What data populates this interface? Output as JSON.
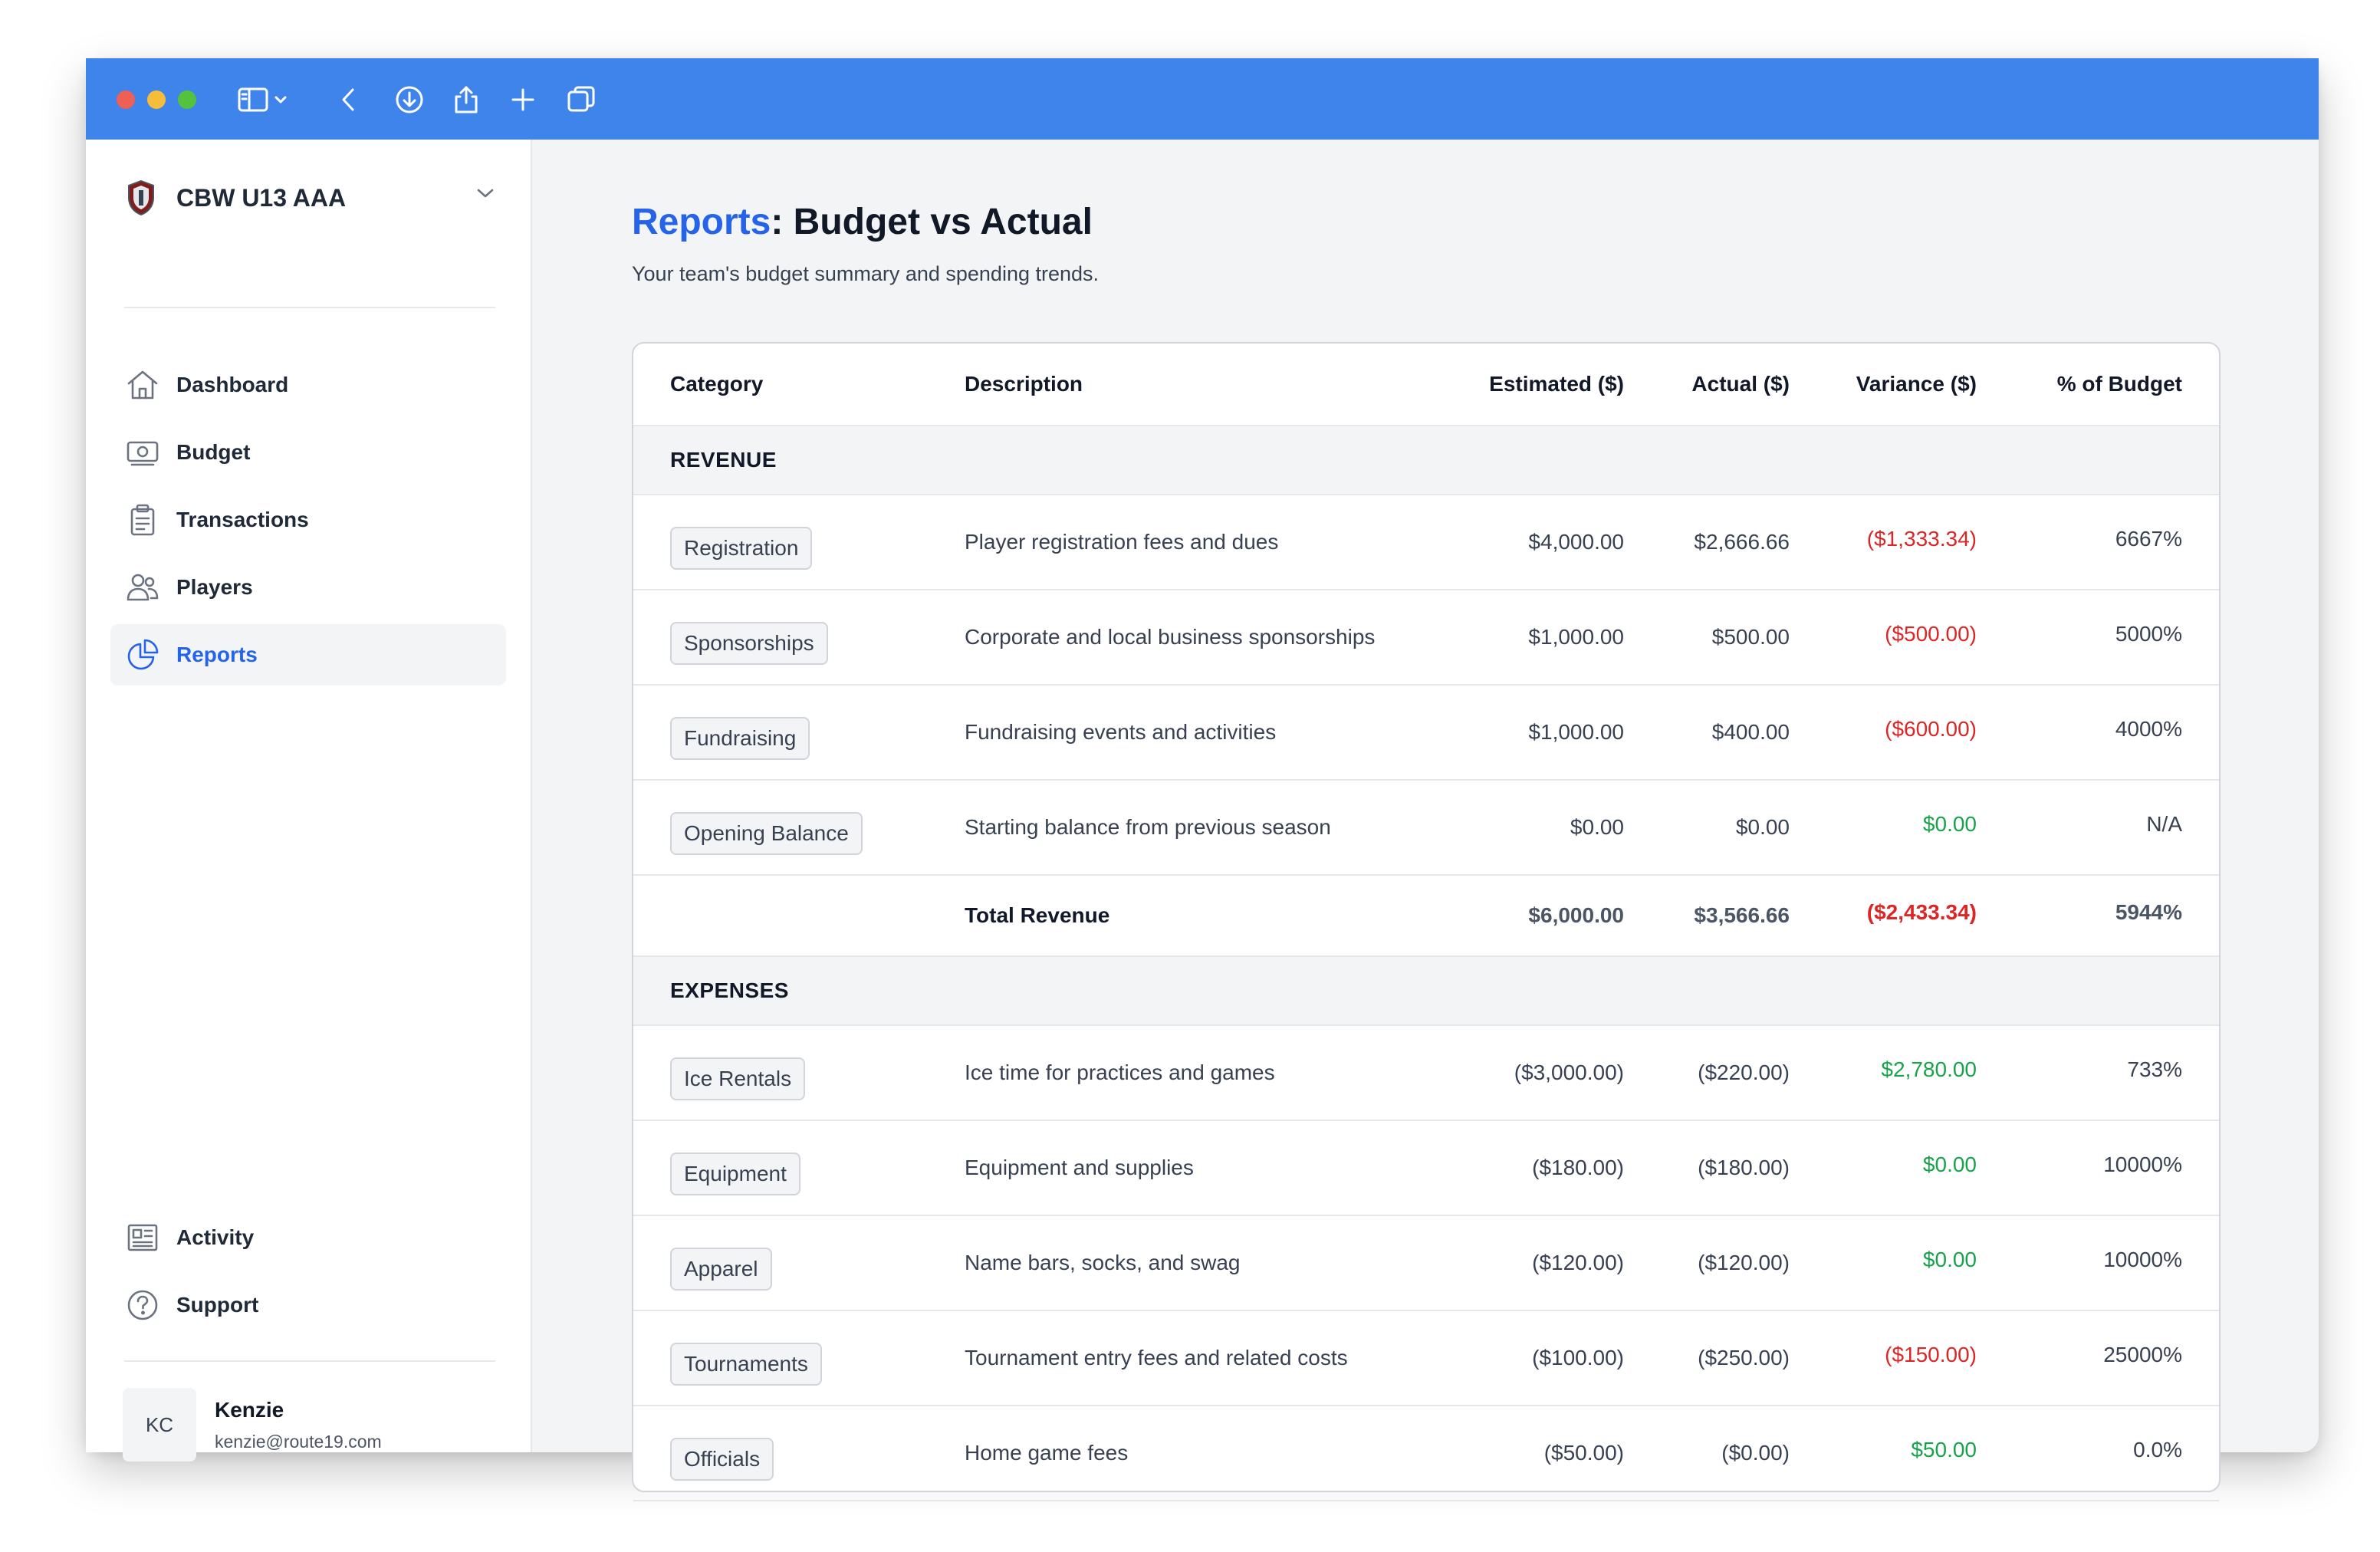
{
  "sidebar": {
    "team_name": "CBW U13 AAA",
    "nav": [
      {
        "label": "Dashboard",
        "icon": "home-icon"
      },
      {
        "label": "Budget",
        "icon": "money-icon"
      },
      {
        "label": "Transactions",
        "icon": "clipboard-icon"
      },
      {
        "label": "Players",
        "icon": "users-icon"
      },
      {
        "label": "Reports",
        "icon": "pie-chart-icon"
      }
    ],
    "bottom_nav": [
      {
        "label": "Activity",
        "icon": "newspaper-icon"
      },
      {
        "label": "Support",
        "icon": "help-icon"
      }
    ],
    "user": {
      "initials": "KC",
      "name": "Kenzie",
      "email": "kenzie@route19.com"
    }
  },
  "page": {
    "breadcrumb": "Reports",
    "title": ": Budget vs Actual",
    "subtitle": "Your team's budget summary and spending trends."
  },
  "table": {
    "headers": {
      "category": "Category",
      "description": "Description",
      "estimated": "Estimated ($)",
      "actual": "Actual ($)",
      "variance": "Variance ($)",
      "percent": "% of Budget"
    },
    "revenue_label": "REVENUE",
    "revenue_rows": [
      {
        "category": "Registration",
        "description": "Player registration fees and dues",
        "estimated": "$4,000.00",
        "actual": "$2,666.66",
        "variance": "($1,333.34)",
        "percent": "6667%"
      },
      {
        "category": "Sponsorships",
        "description": "Corporate and local business sponsorships",
        "estimated": "$1,000.00",
        "actual": "$500.00",
        "variance": "($500.00)",
        "percent": "5000%"
      },
      {
        "category": "Fundraising",
        "description": "Fundraising events and activities",
        "estimated": "$1,000.00",
        "actual": "$400.00",
        "variance": "($600.00)",
        "percent": "4000%"
      },
      {
        "category": "Opening Balance",
        "description": "Starting balance from previous season",
        "estimated": "$0.00",
        "actual": "$0.00",
        "variance": "$0.00",
        "percent": "N/A"
      }
    ],
    "revenue_total": {
      "label": "Total Revenue",
      "estimated": "$6,000.00",
      "actual": "$3,566.66",
      "variance": "($2,433.34)",
      "percent": "5944%"
    },
    "expenses_label": "EXPENSES",
    "expense_rows": [
      {
        "category": "Ice Rentals",
        "description": "Ice time for practices and games",
        "estimated": "($3,000.00)",
        "actual": "($220.00)",
        "variance": "$2,780.00",
        "percent": "733%"
      },
      {
        "category": "Equipment",
        "description": "Equipment and supplies",
        "estimated": "($180.00)",
        "actual": "($180.00)",
        "variance": "$0.00",
        "percent": "10000%"
      },
      {
        "category": "Apparel",
        "description": "Name bars, socks, and swag",
        "estimated": "($120.00)",
        "actual": "($120.00)",
        "variance": "$0.00",
        "percent": "10000%"
      },
      {
        "category": "Tournaments",
        "description": "Tournament entry fees and related costs",
        "estimated": "($100.00)",
        "actual": "($250.00)",
        "variance": "($150.00)",
        "percent": "25000%"
      },
      {
        "category": "Officials",
        "description": "Home game fees",
        "estimated": "($50.00)",
        "actual": "($0.00)",
        "variance": "$50.00",
        "percent": "0.0%"
      }
    ]
  },
  "colors": {
    "titlebar": "#3f84ea",
    "accent": "#2563eb",
    "negative": "#dc2626",
    "positive": "#16a34a"
  }
}
